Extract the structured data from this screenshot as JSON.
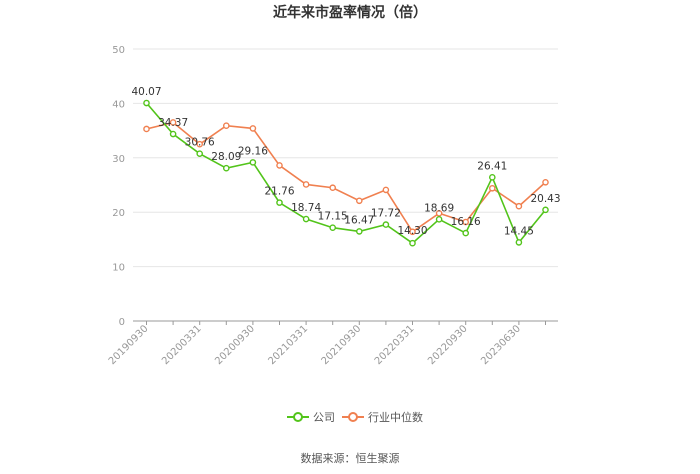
{
  "chart_data": {
    "type": "line",
    "title": "近年来市盈率情况（倍）",
    "source": "数据来源：恒生聚源",
    "ylim": [
      0,
      50
    ],
    "yticks": [
      "0",
      "10",
      "20",
      "30",
      "40",
      "50"
    ],
    "xtick_labels": [
      "20190930",
      "20200331",
      "20200930",
      "20210331",
      "20210930",
      "20220331",
      "20220930",
      "20230630"
    ],
    "series": [
      {
        "name": "公司",
        "color": "#52c41a",
        "values": [
          40.07,
          34.37,
          30.76,
          28.09,
          29.16,
          21.76,
          18.74,
          17.15,
          16.47,
          17.72,
          14.3,
          18.69,
          16.16,
          26.41,
          14.45,
          20.43
        ],
        "labels": [
          "40.07",
          "34.37",
          "30.76",
          "28.09",
          "29.16",
          "21.76",
          "18.74",
          "17.15",
          "16.47",
          "17.72",
          "14.30",
          "18.69",
          "16.16",
          "26.41",
          "14.45",
          "20.43"
        ]
      },
      {
        "name": "行业中位数",
        "color": "#f08050",
        "values": [
          35.3,
          36.5,
          32.5,
          35.9,
          35.4,
          28.6,
          25.1,
          24.5,
          22.1,
          24.1,
          16.4,
          19.8,
          18.2,
          24.4,
          21.1,
          25.5
        ]
      }
    ],
    "grid": "horizontal",
    "legend": "bottom-center"
  }
}
